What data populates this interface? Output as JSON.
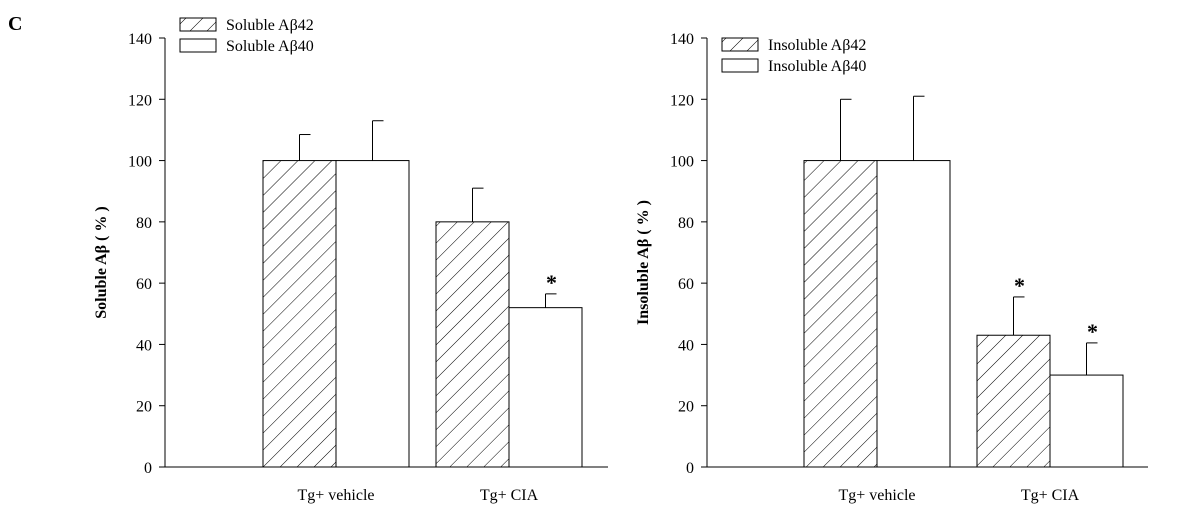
{
  "panel_label": "C",
  "chart_data": [
    {
      "type": "bar",
      "categories": [
        "Tg+ vehicle",
        "Tg+ CIA"
      ],
      "series": [
        {
          "name": "Soluble Aβ42",
          "values": [
            100,
            80
          ],
          "errors": [
            8.5,
            11
          ],
          "significant": [
            false,
            false
          ],
          "pattern": "hatch"
        },
        {
          "name": "Soluble Aβ40",
          "values": [
            100,
            52
          ],
          "errors": [
            13,
            4.5
          ],
          "significant": [
            false,
            true
          ],
          "pattern": "plain"
        }
      ],
      "xlabel": "",
      "ylabel": "Soluble Aβ ( % )",
      "ylim": [
        0,
        140
      ],
      "yticks": [
        0,
        20,
        40,
        60,
        80,
        100,
        120,
        140
      ],
      "significance_marker": "*",
      "legend_position": "top-left",
      "grid": false
    },
    {
      "type": "bar",
      "categories": [
        "Tg+ vehicle",
        "Tg+ CIA"
      ],
      "series": [
        {
          "name": "Insoluble Aβ42",
          "values": [
            100,
            43
          ],
          "errors": [
            20,
            12.5
          ],
          "significant": [
            false,
            true
          ],
          "pattern": "hatch"
        },
        {
          "name": "Insoluble Aβ40",
          "values": [
            100,
            30
          ],
          "errors": [
            21,
            10.5
          ],
          "significant": [
            false,
            true
          ],
          "pattern": "plain"
        }
      ],
      "xlabel": "",
      "ylabel": "Insoluble Aβ ( % )",
      "ylim": [
        0,
        140
      ],
      "yticks": [
        0,
        20,
        40,
        60,
        80,
        100,
        120,
        140
      ],
      "significance_marker": "*",
      "legend_position": "top-left",
      "grid": false
    }
  ]
}
